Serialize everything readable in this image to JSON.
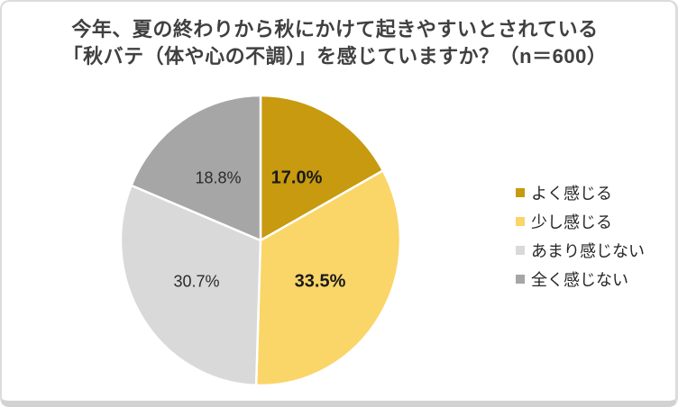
{
  "title": {
    "line1": "今年、夏の終わりから秋にかけて起きやすいとされている",
    "line2": "「秋バテ（体や心の不調）」を感じていますか？（n＝600）"
  },
  "chart_data": {
    "type": "pie",
    "title": "今年、夏の終わりから秋にかけて起きやすいとされている「秋バテ（体や心の不調）」を感じていますか？（n＝600）",
    "sample_size_text": "n＝600",
    "start_angle_deg": 0,
    "direction": "clockwise",
    "legend_position": "right",
    "slices": [
      {
        "key": "yoku-kanjiru",
        "label": "よく感じる",
        "value": 17.0,
        "pct_label": "17.0%",
        "color": "#C79A0F",
        "label_bold": true
      },
      {
        "key": "sukoshi-kanjiru",
        "label": "少し感じる",
        "value": 33.5,
        "pct_label": "33.5%",
        "color": "#FAD568",
        "label_bold": true
      },
      {
        "key": "amari-kanjinai",
        "label": "あまり感じない",
        "value": 30.7,
        "pct_label": "30.7%",
        "color": "#D9D9D9",
        "label_bold": false
      },
      {
        "key": "mattaku-kanjinai",
        "label": "全く感じない",
        "value": 18.8,
        "pct_label": "18.8%",
        "color": "#A6A6A6",
        "label_bold": false
      }
    ]
  },
  "colors": {
    "title_text": "#404040",
    "label_text": "#262626",
    "card_border": "#dcdcdc",
    "slice_gap": "#ffffff"
  }
}
